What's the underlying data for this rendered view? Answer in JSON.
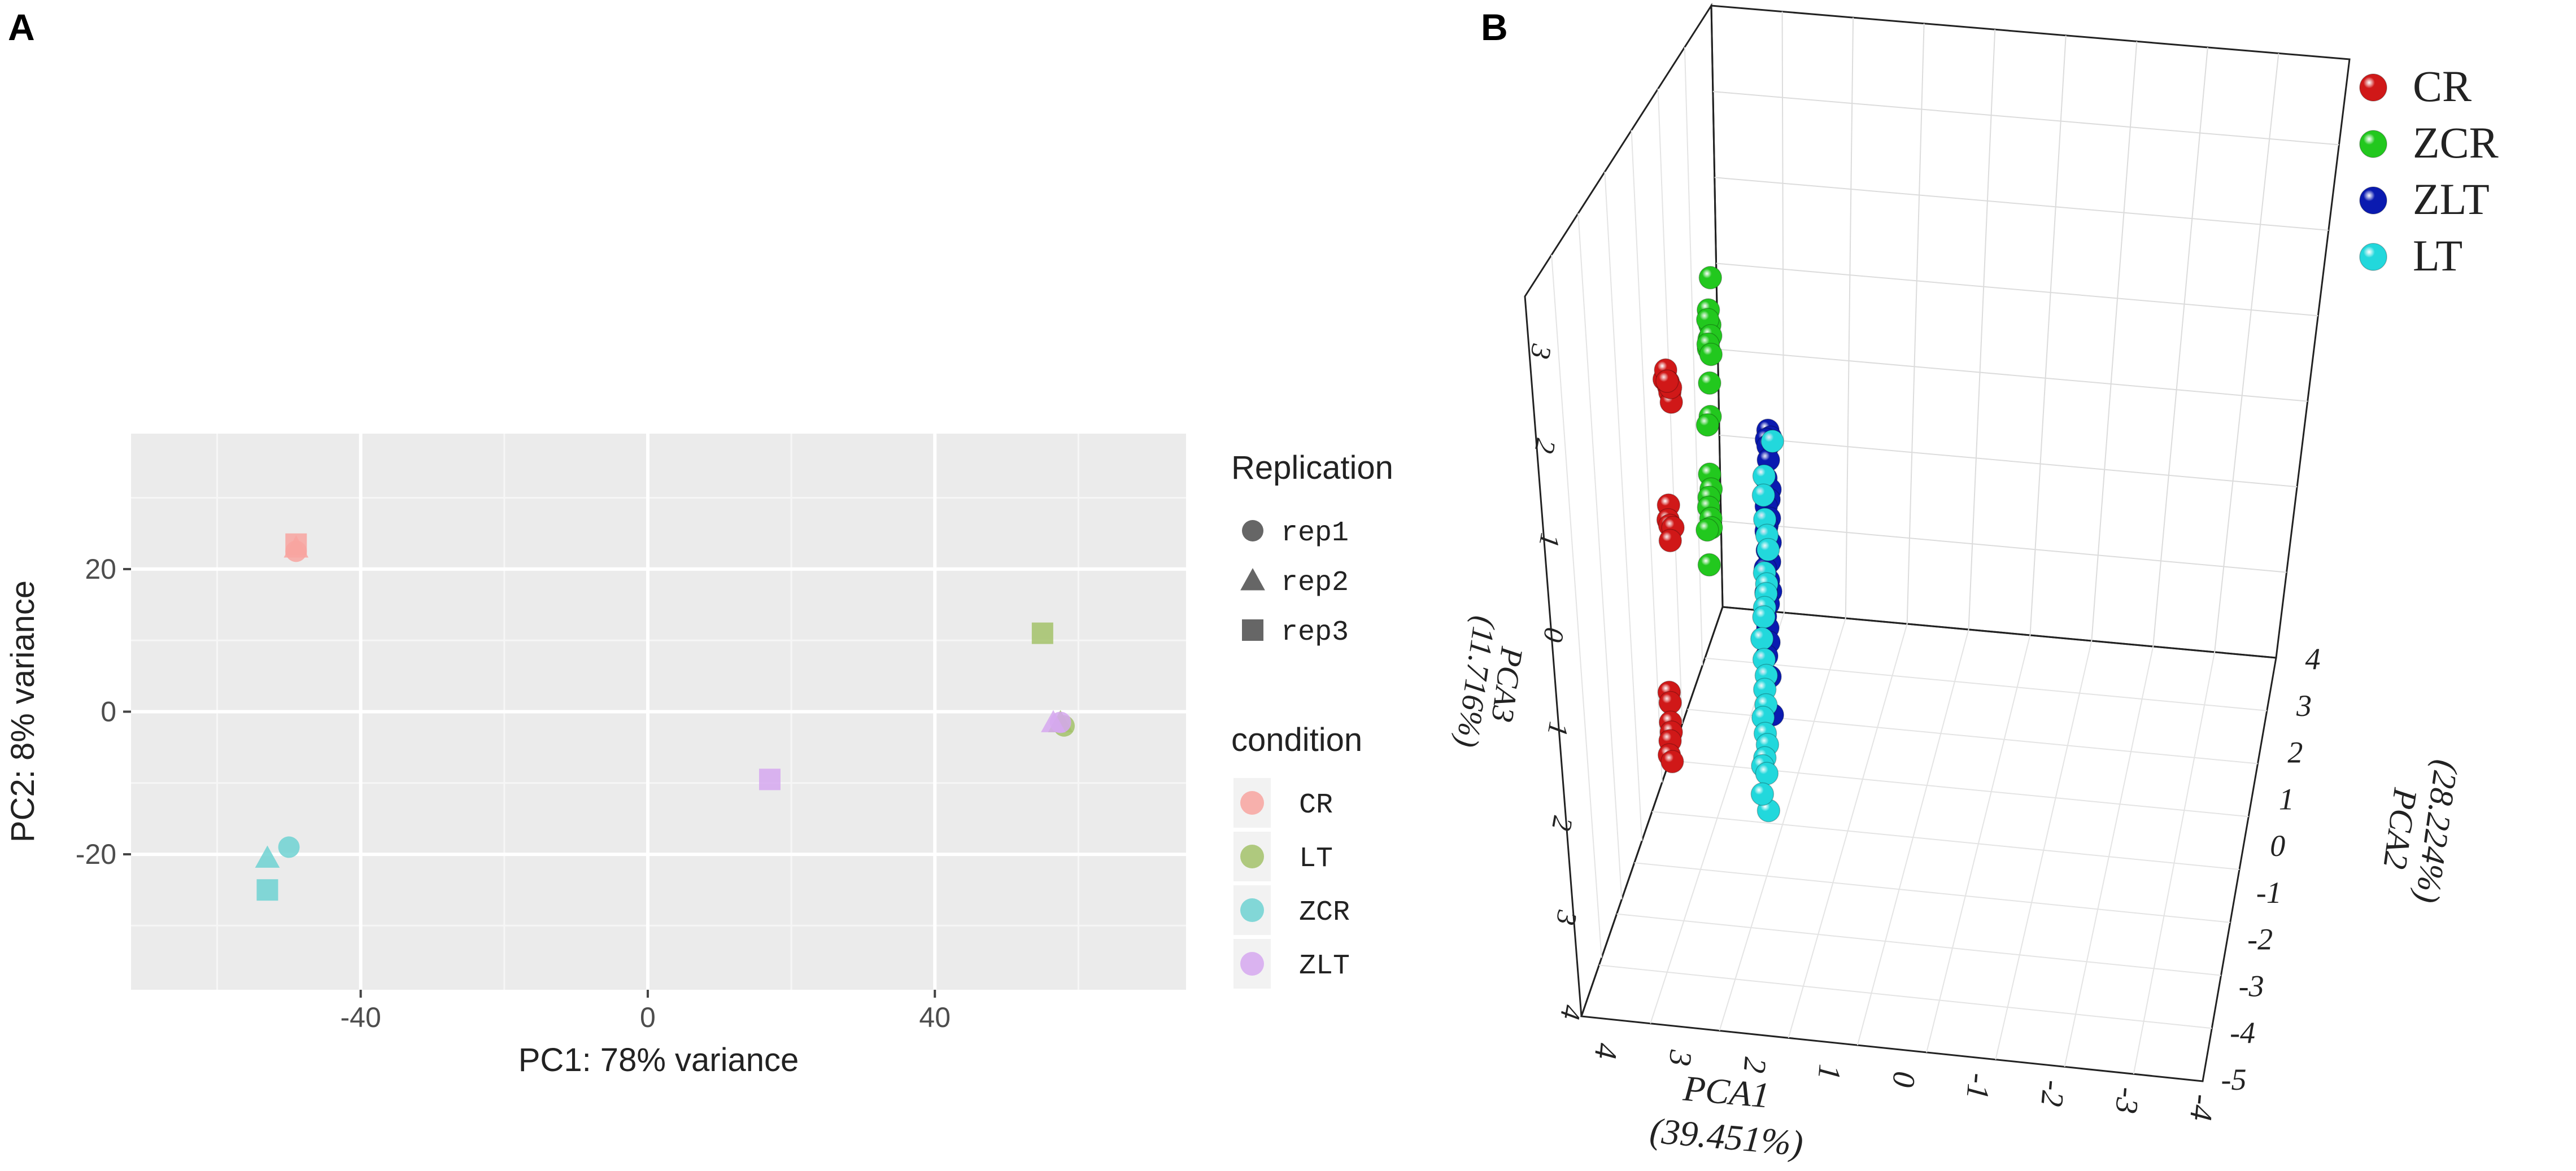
{
  "panels": {
    "a_label": "A",
    "b_label": "B"
  },
  "chart_data": [
    {
      "type": "scatter",
      "panel": "A",
      "xlabel": "PC1: 78% variance",
      "ylabel": "PC2: 8% variance",
      "xlim": [
        -72,
        75
      ],
      "ylim": [
        -39,
        39
      ],
      "xticks": [
        -40,
        0,
        40
      ],
      "yticks": [
        -20,
        0,
        20
      ],
      "xtick_labels": [
        "-40",
        "0",
        "40"
      ],
      "ytick_labels": [
        "-20",
        "0",
        "20"
      ],
      "grid": true,
      "legends": {
        "shape_title": "Replication",
        "shapes": [
          {
            "label": "rep1",
            "shape": "circle"
          },
          {
            "label": "rep2",
            "shape": "triangle"
          },
          {
            "label": "rep3",
            "shape": "square"
          }
        ],
        "color_title": "condition",
        "colors": [
          {
            "label": "CR",
            "color": "#f8a5a0"
          },
          {
            "label": "LT",
            "color": "#a3c26a"
          },
          {
            "label": "ZCR",
            "color": "#6fd2d2"
          },
          {
            "label": "ZLT",
            "color": "#d6a8f0"
          }
        ]
      },
      "points": [
        {
          "condition": "CR",
          "rep": "rep1",
          "x": -49,
          "y": 22.5
        },
        {
          "condition": "CR",
          "rep": "rep2",
          "x": -49,
          "y": 23
        },
        {
          "condition": "CR",
          "rep": "rep3",
          "x": -49,
          "y": 23.5
        },
        {
          "condition": "LT",
          "rep": "rep1",
          "x": 58,
          "y": -2
        },
        {
          "condition": "LT",
          "rep": "rep2",
          "x": 57.5,
          "y": -1.5
        },
        {
          "condition": "LT",
          "rep": "rep3",
          "x": 55,
          "y": 11
        },
        {
          "condition": "ZCR",
          "rep": "rep1",
          "x": -50,
          "y": -19
        },
        {
          "condition": "ZCR",
          "rep": "rep2",
          "x": -53,
          "y": -20.5
        },
        {
          "condition": "ZCR",
          "rep": "rep3",
          "x": -53,
          "y": -25
        },
        {
          "condition": "ZLT",
          "rep": "rep1",
          "x": 57.5,
          "y": -1.5
        },
        {
          "condition": "ZLT",
          "rep": "rep2",
          "x": 56.5,
          "y": -1.5
        },
        {
          "condition": "ZLT",
          "rep": "rep3",
          "x": 17,
          "y": -9.5
        }
      ]
    },
    {
      "type": "scatter",
      "panel": "B",
      "projection": "3d",
      "axes": {
        "pca1_label": "PCA1",
        "pca1_variance": "(39.451%)",
        "pca2_label": "PCA2",
        "pca2_variance": "(28.224%)",
        "pca3_label": "PCA3",
        "pca3_variance": "(11.716%)"
      },
      "pca1_ticks": [
        "4",
        "3",
        "2",
        "1",
        "0",
        "-1",
        "-2",
        "-3",
        "-4"
      ],
      "pca2_ticks": [
        "4",
        "3",
        "2",
        "1",
        "0",
        "-1",
        "-2",
        "-3",
        "-4",
        "-5"
      ],
      "pca3_ticks": [
        "3",
        "2",
        "1",
        "0",
        "1",
        "2",
        "3",
        "4"
      ],
      "legend": [
        {
          "label": "CR",
          "color": "#d01818"
        },
        {
          "label": "ZCR",
          "color": "#22c81e"
        },
        {
          "label": "ZLT",
          "color": "#0a1ab0"
        },
        {
          "label": "LT",
          "color": "#22d8dc"
        }
      ],
      "groups": [
        {
          "name": "CR",
          "color": "#d01818",
          "points": [
            [
              0.37,
              3.25,
              2.05
            ],
            [
              0.26,
              3.15,
              2.15
            ],
            [
              0.47,
              3.05,
              2.05
            ],
            [
              0.31,
              3.0,
              2.0
            ],
            [
              0.42,
              2.95,
              1.95
            ],
            [
              0.31,
              2.85,
              1.85
            ],
            [
              0.36,
              2.9,
              2.0
            ],
            [
              0.44,
              3.1,
              2.05
            ],
            [
              0.02,
              2.95,
              0.75
            ],
            [
              0.17,
              3.0,
              0.6
            ],
            [
              0.12,
              2.9,
              0.55
            ],
            [
              0.25,
              2.75,
              0.55
            ],
            [
              0.27,
              2.9,
              0.4
            ],
            [
              -0.06,
              2.9,
              -1.2
            ],
            [
              -0.02,
              2.85,
              -1.3
            ],
            [
              0.06,
              2.85,
              -1.5
            ],
            [
              0.02,
              2.8,
              -1.6
            ],
            [
              -0.06,
              2.85,
              -1.7
            ],
            [
              -0.02,
              2.9,
              -1.85
            ],
            [
              0.04,
              2.75,
              -1.9
            ]
          ]
        },
        {
          "name": "ZCR",
          "color": "#22c81e",
          "points": [
            [
              -1.5,
              0.4,
              3.3
            ],
            [
              -1.55,
              0.5,
              2.95
            ],
            [
              -1.65,
              0.4,
              2.8
            ],
            [
              -1.45,
              0.55,
              2.85
            ],
            [
              -1.6,
              0.45,
              2.65
            ],
            [
              -1.5,
              0.5,
              2.55
            ],
            [
              -1.4,
              0.4,
              2.7
            ],
            [
              -1.35,
              0.55,
              2.6
            ],
            [
              -1.6,
              0.35,
              2.5
            ],
            [
              -1.45,
              0.45,
              2.2
            ],
            [
              -1.55,
              0.4,
              1.85
            ],
            [
              -1.5,
              0.55,
              1.75
            ],
            [
              -1.45,
              0.45,
              1.25
            ],
            [
              -1.55,
              0.35,
              1.1
            ],
            [
              -1.6,
              0.45,
              1.0
            ],
            [
              -1.45,
              0.5,
              0.9
            ],
            [
              -1.35,
              0.4,
              0.8
            ],
            [
              -1.5,
              0.35,
              0.7
            ],
            [
              -1.6,
              0.55,
              0.65
            ],
            [
              -1.55,
              0.45,
              0.3
            ]
          ]
        },
        {
          "name": "ZLT",
          "color": "#0a1ab0",
          "points": [
            [
              -1.3,
              -2.7,
              2.05
            ],
            [
              -1.1,
              -2.8,
              2.0
            ],
            [
              -1.2,
              -2.6,
              1.95
            ],
            [
              -1.0,
              -2.65,
              1.9
            ],
            [
              -1.15,
              -2.7,
              1.75
            ],
            [
              -1.05,
              -2.55,
              1.55
            ],
            [
              -1.2,
              -2.8,
              1.45
            ],
            [
              -0.95,
              -2.7,
              1.35
            ],
            [
              -1.25,
              -2.6,
              1.25
            ],
            [
              -1.1,
              -2.75,
              1.15
            ],
            [
              -1.3,
              -2.65,
              1.05
            ],
            [
              -1.0,
              -2.55,
              1.0
            ],
            [
              -1.15,
              -2.8,
              0.9
            ],
            [
              -1.2,
              -2.65,
              0.8
            ],
            [
              -1.05,
              -2.75,
              0.7
            ],
            [
              -1.25,
              -2.55,
              0.6
            ],
            [
              -1.1,
              -2.7,
              0.5
            ],
            [
              -1.0,
              -2.8,
              0.4
            ],
            [
              -1.3,
              -2.6,
              0.35
            ],
            [
              -1.15,
              -2.7,
              0.25
            ],
            [
              -1.2,
              -2.55,
              0.1
            ],
            [
              -1.05,
              -2.65,
              0.0
            ],
            [
              -1.25,
              -2.75,
              -0.15
            ],
            [
              -1.1,
              -2.6,
              -0.3
            ],
            [
              -1.2,
              -2.8,
              -0.5
            ],
            [
              -1.6,
              -3.0,
              -0.9
            ]
          ]
        },
        {
          "name": "LT",
          "color": "#22d8dc",
          "points": [
            [
              -1.6,
              -3.0,
              1.95
            ],
            [
              -1.35,
              -2.5,
              1.55
            ],
            [
              -1.25,
              -2.45,
              1.35
            ],
            [
              -1.4,
              -2.55,
              1.1
            ],
            [
              -1.3,
              -2.65,
              0.95
            ],
            [
              -1.5,
              -2.75,
              0.8
            ],
            [
              -1.2,
              -2.5,
              0.55
            ],
            [
              -1.1,
              -2.6,
              0.45
            ],
            [
              -1.0,
              -2.55,
              0.35
            ],
            [
              -0.9,
              -2.45,
              0.2
            ],
            [
              -0.85,
              -2.4,
              0.1
            ],
            [
              -1.15,
              -2.35,
              -0.15
            ],
            [
              -1.05,
              -2.45,
              -0.35
            ],
            [
              -0.95,
              -2.55,
              -0.5
            ],
            [
              -0.85,
              -2.45,
              -0.65
            ],
            [
              -0.75,
              -2.5,
              -0.8
            ],
            [
              -0.8,
              -2.35,
              -0.95
            ],
            [
              -0.7,
              -2.45,
              -1.1
            ],
            [
              -0.6,
              -2.55,
              -1.2
            ],
            [
              -0.55,
              -2.4,
              -1.35
            ],
            [
              -0.65,
              -2.3,
              -1.45
            ],
            [
              -0.5,
              -2.5,
              -1.5
            ],
            [
              -1.1,
              -2.7,
              -1.9
            ],
            [
              -0.75,
              -2.3,
              -1.75
            ]
          ]
        }
      ]
    }
  ]
}
